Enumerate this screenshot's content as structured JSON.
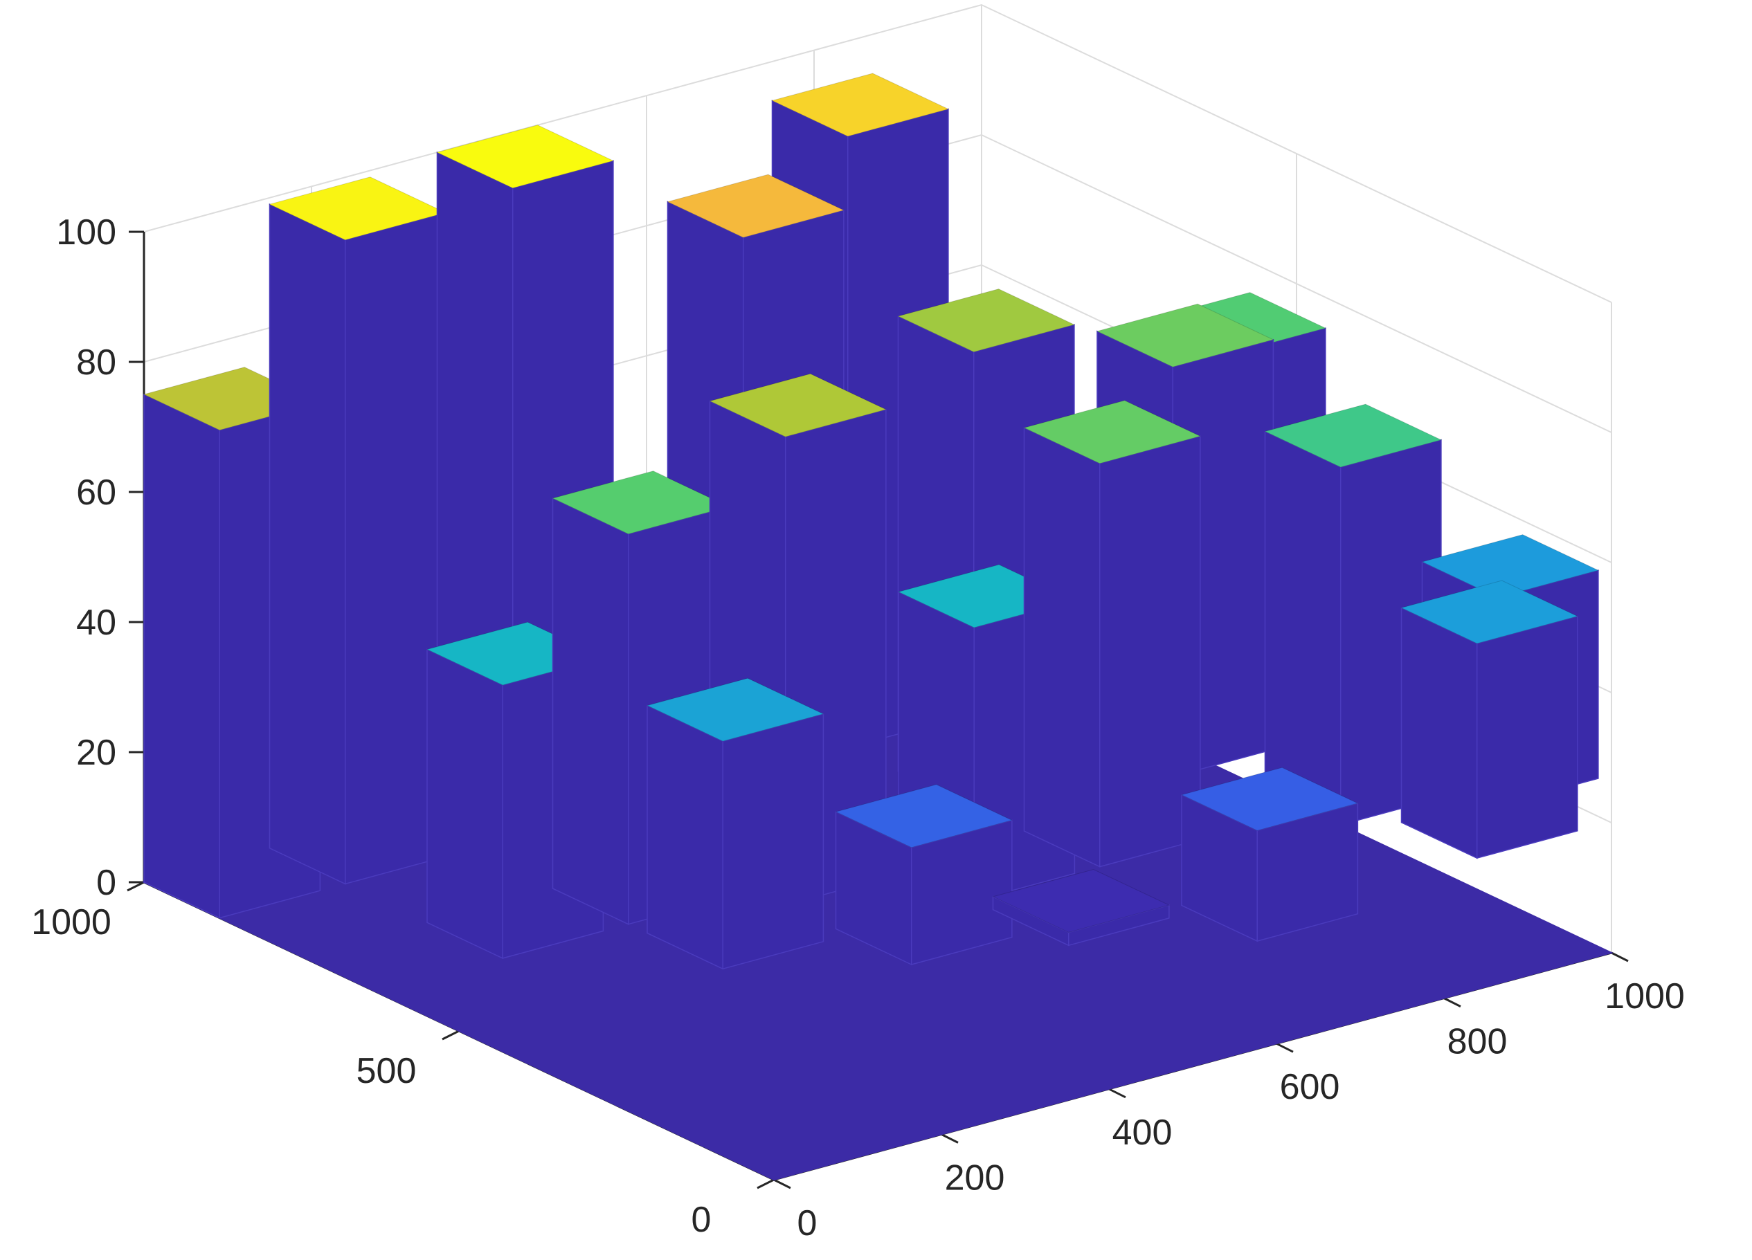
{
  "chart_data": {
    "type": "bar3d",
    "x_ticks": [
      "0",
      "200",
      "400",
      "600",
      "800",
      "1000"
    ],
    "y_ticks": [
      "0",
      "500",
      "1000"
    ],
    "z_ticks": [
      "0",
      "20",
      "40",
      "60",
      "80",
      "100"
    ],
    "xlim": [
      0,
      1000
    ],
    "ylim": [
      0,
      1000
    ],
    "zlim": [
      0,
      100
    ],
    "grid": true,
    "colormap": "parula",
    "floor_color": "#3c2ba6",
    "side_color": "#3a2aa9",
    "columns": [
      {
        "x": 0,
        "y": 1000,
        "z": 75
      },
      {
        "x": 150,
        "y": 1000,
        "z": 99
      },
      {
        "x": 350,
        "y": 1000,
        "z": 100
      },
      {
        "x": 150,
        "y": 750,
        "z": 42
      },
      {
        "x": 300,
        "y": 750,
        "z": 60
      },
      {
        "x": 550,
        "y": 900,
        "z": 90
      },
      {
        "x": 750,
        "y": 1000,
        "z": 94
      },
      {
        "x": 300,
        "y": 600,
        "z": 35
      },
      {
        "x": 450,
        "y": 700,
        "z": 72
      },
      {
        "x": 750,
        "y": 800,
        "z": 70
      },
      {
        "x": 450,
        "y": 500,
        "z": 18
      },
      {
        "x": 600,
        "y": 600,
        "z": 42
      },
      {
        "x": 750,
        "y": 600,
        "z": 62
      },
      {
        "x": 950,
        "y": 750,
        "z": 63
      },
      {
        "x": 1050,
        "y": 800,
        "z": 59
      },
      {
        "x": 600,
        "y": 450,
        "z": 2
      },
      {
        "x": 750,
        "y": 350,
        "z": 17
      },
      {
        "x": 1000,
        "y": 550,
        "z": 55
      },
      {
        "x": 1050,
        "y": 400,
        "z": 33
      },
      {
        "x": 1150,
        "y": 500,
        "z": 32
      }
    ]
  }
}
